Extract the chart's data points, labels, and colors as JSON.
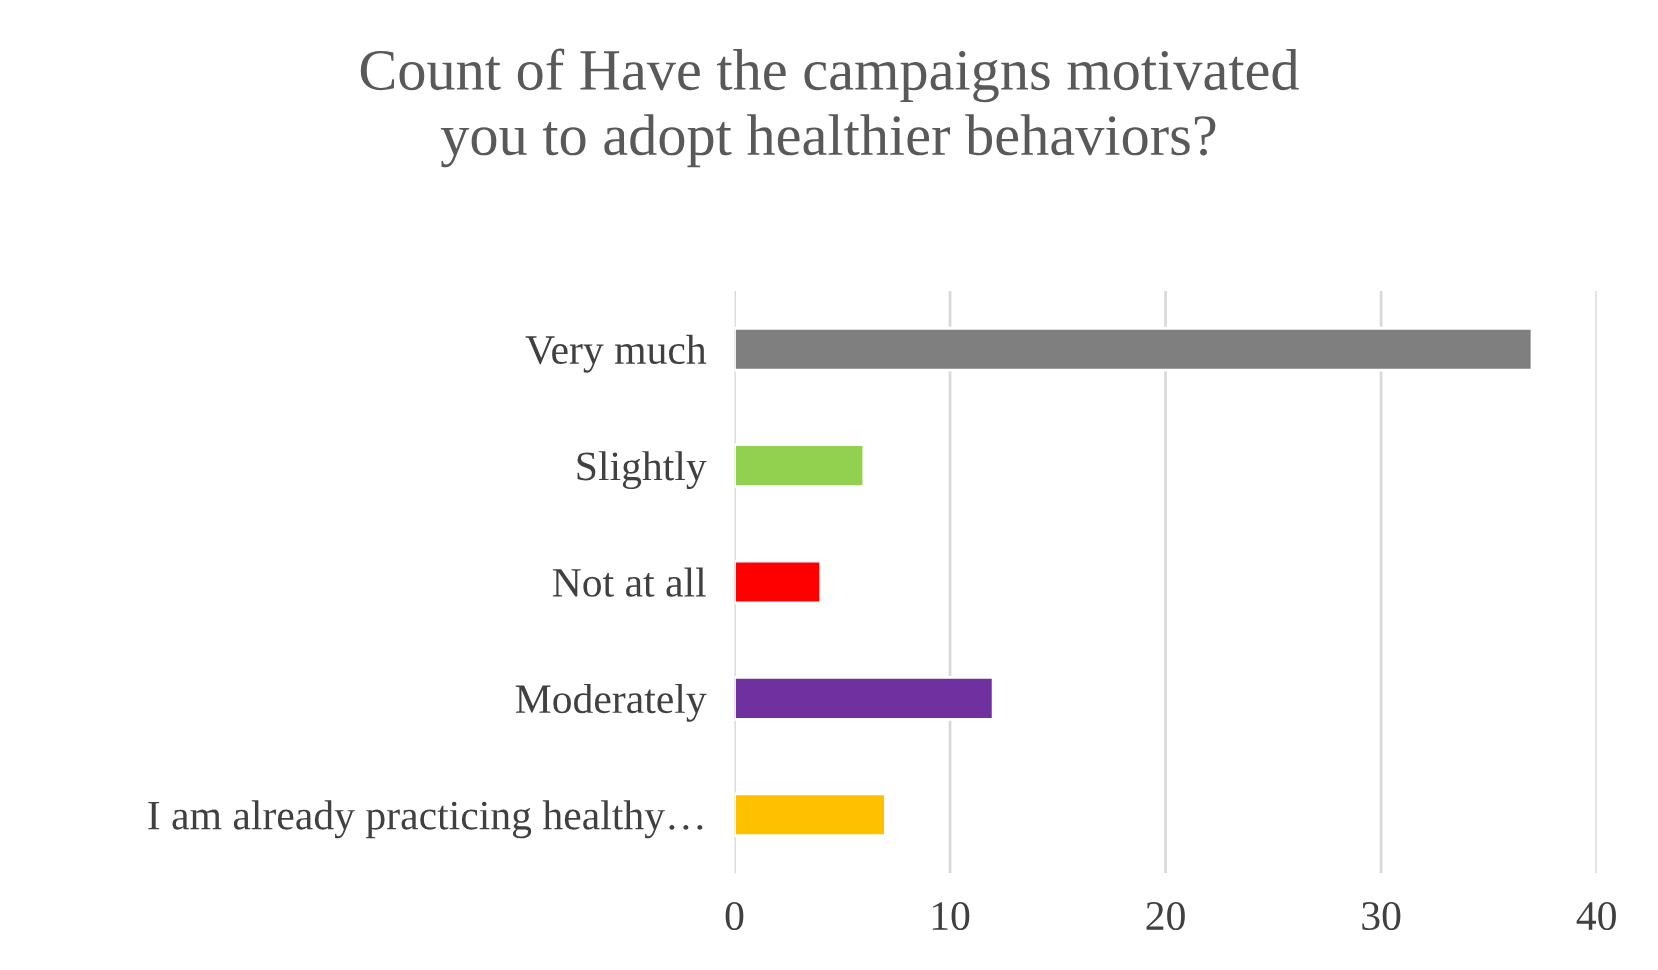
{
  "chart_data": {
    "type": "bar",
    "orientation": "horizontal",
    "title": "Count of Have the campaigns motivated\nyou to adopt healthier behaviors?",
    "categories": [
      "Very much",
      "Slightly",
      "Not at all",
      "Moderately",
      "I am already practicing healthy…"
    ],
    "values": [
      37,
      6,
      4,
      12,
      7
    ],
    "colors": [
      "#7f7f7f",
      "#92d050",
      "#ff0000",
      "#7030a0",
      "#ffc000"
    ],
    "xlim": [
      0,
      40
    ],
    "xticks": [
      0,
      10,
      20,
      30,
      40
    ],
    "grid": "x"
  }
}
